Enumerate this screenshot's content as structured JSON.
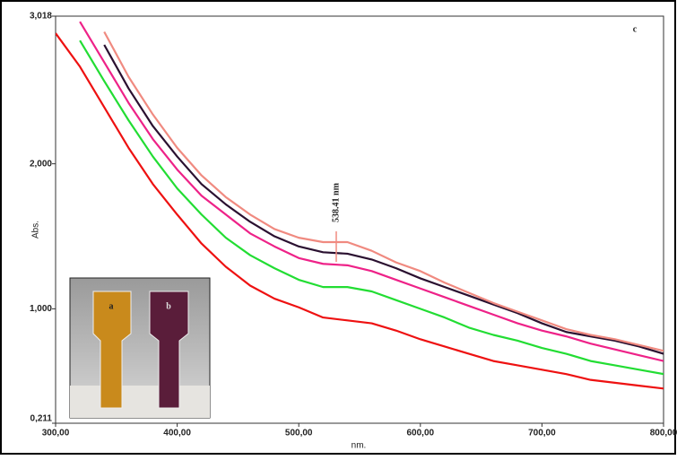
{
  "chart_data": {
    "type": "line",
    "x_label": "nm.",
    "y_label": "Abs.",
    "annotation": "538.41 nm",
    "panel_label": "c",
    "inset_labels": [
      "a",
      "b"
    ],
    "xlim": [
      300,
      800
    ],
    "xticks": [
      {
        "value": 300,
        "label": "300,00"
      },
      {
        "value": 400,
        "label": "400,00"
      },
      {
        "value": 500,
        "label": "500,00"
      },
      {
        "value": 600,
        "label": "600,00"
      },
      {
        "value": 700,
        "label": "700,00"
      },
      {
        "value": 800,
        "label": "800,00"
      }
    ],
    "ylim": [
      0.211,
      3.018
    ],
    "yticks": [
      {
        "value": 0.211,
        "label": "0,211"
      },
      {
        "value": 1,
        "label": "1,000"
      },
      {
        "value": 2,
        "label": "2,000"
      },
      {
        "value": 3.018,
        "label": "3,018"
      }
    ],
    "x": [
      300,
      320,
      340,
      360,
      380,
      400,
      420,
      440,
      460,
      480,
      500,
      520,
      540,
      560,
      580,
      600,
      620,
      640,
      660,
      680,
      700,
      720,
      740,
      760,
      780,
      800
    ],
    "series": [
      {
        "color": "#ee1111",
        "values": [
          2.9,
          2.67,
          2.39,
          2.11,
          1.86,
          1.65,
          1.45,
          1.29,
          1.16,
          1.07,
          1.01,
          0.94,
          0.92,
          0.9,
          0.85,
          0.79,
          0.74,
          0.69,
          0.64,
          0.61,
          0.58,
          0.55,
          0.51,
          0.49,
          0.47,
          0.45
        ]
      },
      {
        "color": "#22dd33",
        "values": [
          null,
          2.85,
          2.57,
          2.3,
          2.05,
          1.83,
          1.65,
          1.49,
          1.37,
          1.28,
          1.2,
          1.15,
          1.15,
          1.12,
          1.06,
          1.0,
          0.94,
          0.87,
          0.82,
          0.78,
          0.73,
          0.69,
          0.64,
          0.61,
          0.58,
          0.55
        ]
      },
      {
        "color": "#ee2288",
        "values": [
          null,
          2.98,
          2.7,
          2.42,
          2.17,
          1.96,
          1.78,
          1.65,
          1.52,
          1.43,
          1.35,
          1.31,
          1.3,
          1.26,
          1.2,
          1.14,
          1.08,
          1.02,
          0.96,
          0.9,
          0.85,
          0.81,
          0.76,
          0.72,
          0.68,
          0.64
        ]
      },
      {
        "color": "#2a1030",
        "values": [
          null,
          null,
          2.82,
          2.52,
          2.26,
          2.05,
          1.86,
          1.72,
          1.6,
          1.5,
          1.43,
          1.39,
          1.38,
          1.34,
          1.28,
          1.21,
          1.15,
          1.09,
          1.03,
          0.97,
          0.9,
          0.84,
          0.81,
          0.78,
          0.74,
          0.69
        ]
      },
      {
        "color": "#f08a80",
        "values": [
          null,
          null,
          2.91,
          2.6,
          2.34,
          2.11,
          1.92,
          1.77,
          1.65,
          1.55,
          1.49,
          1.46,
          1.46,
          1.4,
          1.32,
          1.26,
          1.18,
          1.11,
          1.04,
          0.98,
          0.92,
          0.86,
          0.82,
          0.79,
          0.75,
          0.71
        ]
      }
    ]
  }
}
